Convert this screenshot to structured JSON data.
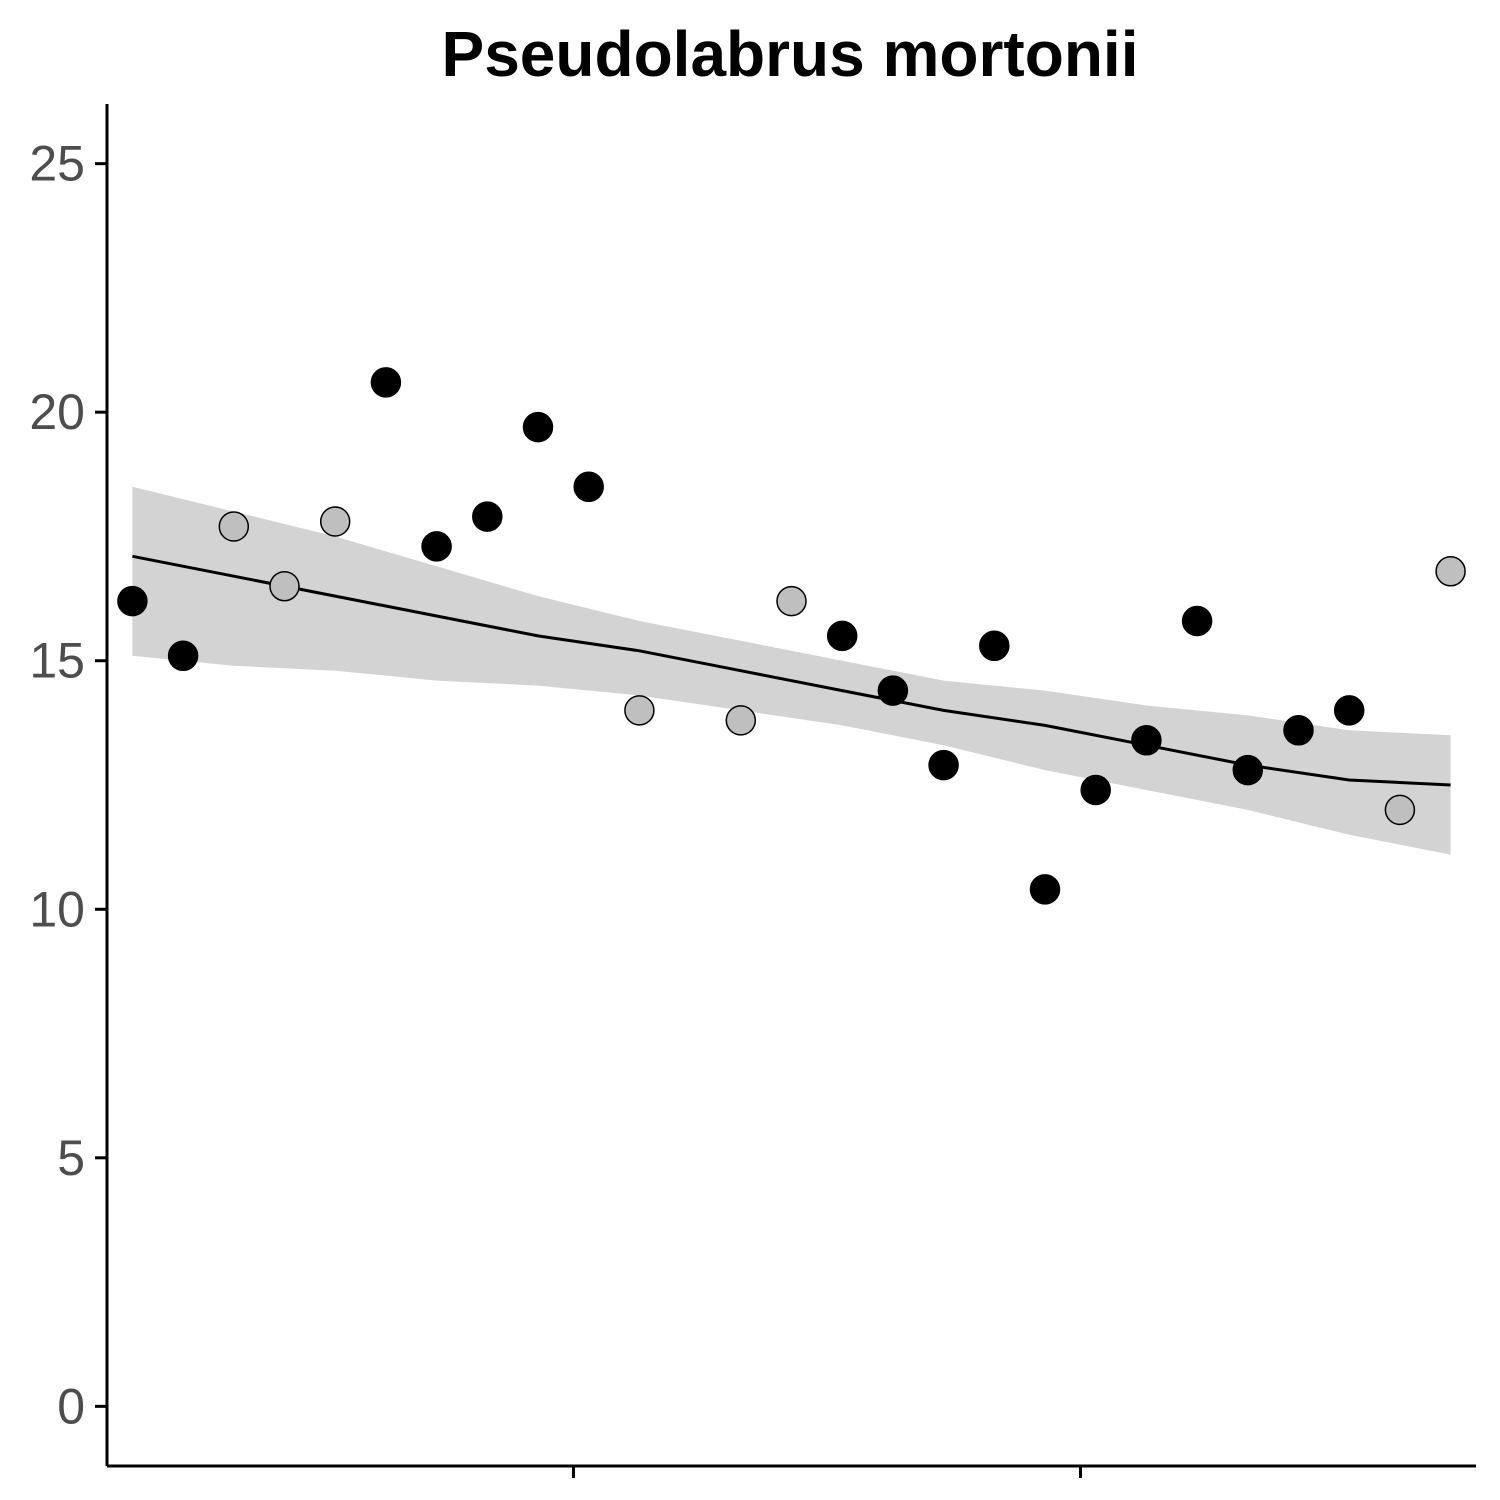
{
  "chart_data": {
    "type": "scatter",
    "title": "Pseudolabrus mortonii",
    "xlabel": "",
    "ylabel": "",
    "xlim": [
      0.5,
      27.5
    ],
    "ylim": [
      -1.2,
      26.2
    ],
    "y_ticks": [
      0,
      5,
      10,
      15,
      20,
      25
    ],
    "x_ticks": [
      9.7,
      19.7
    ],
    "x_tick_labels": [
      "",
      ""
    ],
    "grid": false,
    "legend": "none",
    "colors": {
      "filled": "#000000",
      "open": "#bfbfbf",
      "band": "#d3d3d3",
      "line": "#000000"
    },
    "points": [
      {
        "x": 1,
        "y": 16.2,
        "group": "filled"
      },
      {
        "x": 2,
        "y": 15.1,
        "group": "filled"
      },
      {
        "x": 3,
        "y": 17.7,
        "group": "open"
      },
      {
        "x": 4,
        "y": 16.5,
        "group": "open"
      },
      {
        "x": 5,
        "y": 17.8,
        "group": "open"
      },
      {
        "x": 6,
        "y": 20.6,
        "group": "filled"
      },
      {
        "x": 7,
        "y": 17.3,
        "group": "filled"
      },
      {
        "x": 8,
        "y": 17.9,
        "group": "filled"
      },
      {
        "x": 9,
        "y": 19.7,
        "group": "filled"
      },
      {
        "x": 10,
        "y": 18.5,
        "group": "filled"
      },
      {
        "x": 11,
        "y": 14.0,
        "group": "open"
      },
      {
        "x": 13,
        "y": 13.8,
        "group": "open"
      },
      {
        "x": 14,
        "y": 16.2,
        "group": "open"
      },
      {
        "x": 15,
        "y": 15.5,
        "group": "filled"
      },
      {
        "x": 16,
        "y": 14.4,
        "group": "filled"
      },
      {
        "x": 17,
        "y": 12.9,
        "group": "filled"
      },
      {
        "x": 18,
        "y": 15.3,
        "group": "filled"
      },
      {
        "x": 19,
        "y": 10.4,
        "group": "filled"
      },
      {
        "x": 20,
        "y": 12.4,
        "group": "filled"
      },
      {
        "x": 21,
        "y": 13.4,
        "group": "filled"
      },
      {
        "x": 22,
        "y": 15.8,
        "group": "filled"
      },
      {
        "x": 23,
        "y": 12.8,
        "group": "filled"
      },
      {
        "x": 24,
        "y": 13.6,
        "group": "filled"
      },
      {
        "x": 25,
        "y": 14.0,
        "group": "filled"
      },
      {
        "x": 26,
        "y": 12.0,
        "group": "open"
      },
      {
        "x": 27,
        "y": 16.8,
        "group": "open"
      }
    ],
    "trend": {
      "x": [
        1,
        3,
        5,
        7,
        9,
        11,
        13,
        15,
        17,
        19,
        21,
        23,
        25,
        27
      ],
      "fit": [
        17.1,
        16.7,
        16.3,
        15.9,
        15.5,
        15.2,
        14.8,
        14.4,
        14.0,
        13.7,
        13.3,
        12.9,
        12.6,
        12.5
      ],
      "lower": [
        15.1,
        14.9,
        14.8,
        14.6,
        14.5,
        14.3,
        14.0,
        13.7,
        13.3,
        12.8,
        12.4,
        12.0,
        11.5,
        11.1
      ],
      "upper": [
        18.5,
        18.0,
        17.5,
        16.9,
        16.3,
        15.8,
        15.4,
        15.0,
        14.6,
        14.4,
        14.1,
        13.9,
        13.6,
        13.5
      ]
    }
  }
}
